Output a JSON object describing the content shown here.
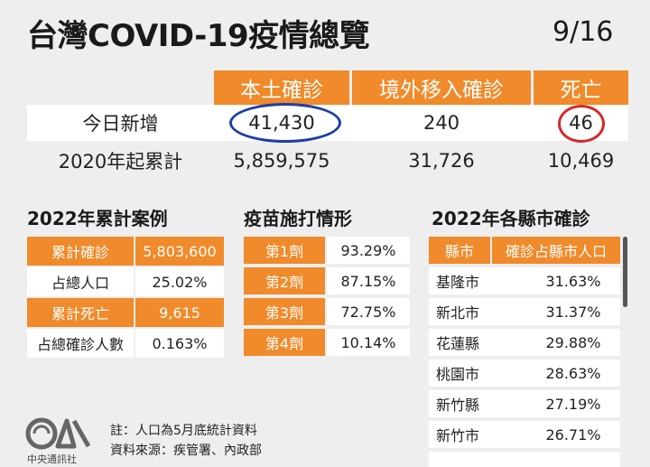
{
  "header": {
    "title": "台灣COVID-19疫情總覽",
    "date": "9/16"
  },
  "summary": {
    "columns": [
      "本土確診",
      "境外移入確診",
      "死亡"
    ],
    "rows": [
      {
        "label": "今日新增",
        "values": [
          "41,430",
          "240",
          "46"
        ]
      },
      {
        "label": "2020年起累計",
        "values": [
          "5,859,575",
          "31,726",
          "10,469"
        ]
      }
    ]
  },
  "cumulative": {
    "title": "2022年累計案例",
    "rows": [
      {
        "label": "累計確診",
        "value": "5,803,600"
      },
      {
        "label": "占總人口",
        "value": "25.02%"
      },
      {
        "label": "累計死亡",
        "value": "9,615"
      },
      {
        "label": "占總確診人數",
        "value": "0.163%"
      }
    ]
  },
  "vaccine": {
    "title": "疫苗施打情形",
    "rows": [
      {
        "label": "第1劑",
        "value": "93.29%"
      },
      {
        "label": "第2劑",
        "value": "87.15%"
      },
      {
        "label": "第3劑",
        "value": "72.75%"
      },
      {
        "label": "第4劑",
        "value": "10.14%"
      }
    ]
  },
  "cities": {
    "title": "2022年各縣市確診",
    "header": [
      "縣市",
      "確診占縣市人口"
    ],
    "rows": [
      {
        "name": "基隆市",
        "value": "31.63%"
      },
      {
        "name": "新北市",
        "value": "31.37%"
      },
      {
        "name": "花蓮縣",
        "value": "29.88%"
      },
      {
        "name": "桃園市",
        "value": "28.63%"
      },
      {
        "name": "新竹縣",
        "value": "27.19%"
      },
      {
        "name": "新竹市",
        "value": "26.71%"
      }
    ]
  },
  "footer": {
    "note1": "註：人口為5月底統計資料",
    "note2": "資料來源：疾管署、內政部",
    "logo_text": "中央通訊社"
  },
  "colors": {
    "accent": "#f08a2a",
    "highlight_blue": "#1a3fa8",
    "highlight_red": "#d42a2a"
  }
}
